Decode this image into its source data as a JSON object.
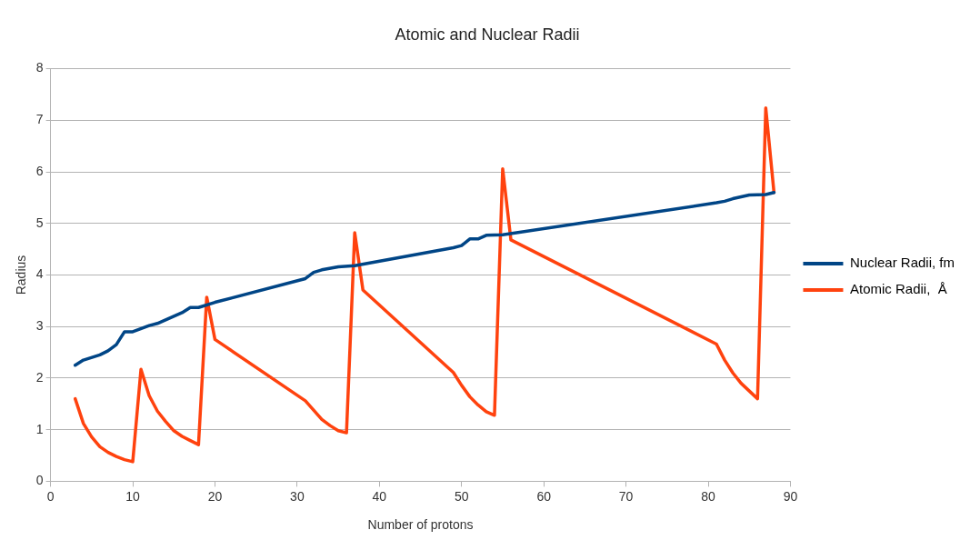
{
  "chart_data": {
    "type": "line",
    "title": "Atomic and Nuclear Radii",
    "xlabel": "Number of protons",
    "ylabel": "Radius",
    "xlim": [
      0,
      90
    ],
    "xticks": [
      0,
      10,
      20,
      30,
      40,
      50,
      60,
      70,
      80,
      90
    ],
    "ylim": [
      0,
      8
    ],
    "yticks": [
      0,
      1,
      2,
      3,
      4,
      5,
      6,
      7,
      8
    ],
    "grid": "y",
    "legend": "right",
    "marker": "none",
    "line_style": "solid",
    "series": [
      {
        "name": "Nuclear Radii, fm",
        "color": "#004586",
        "x": [
          3,
          4,
          6,
          7,
          8,
          9,
          10,
          12,
          13,
          16,
          17,
          18,
          20,
          31,
          32,
          33,
          35,
          37,
          49,
          50,
          51,
          52,
          53,
          55,
          81,
          82,
          83,
          85,
          87,
          88
        ],
        "values": [
          2.25,
          2.35,
          2.45,
          2.53,
          2.65,
          2.9,
          2.9,
          3.02,
          3.06,
          3.27,
          3.37,
          3.37,
          3.47,
          3.93,
          4.05,
          4.1,
          4.16,
          4.18,
          4.53,
          4.57,
          4.7,
          4.7,
          4.77,
          4.78,
          5.4,
          5.43,
          5.48,
          5.55,
          5.56,
          5.6
        ]
      },
      {
        "name": "Atomic Radii,  Å",
        "color": "#ff420e",
        "x": [
          3,
          4,
          5,
          6,
          7,
          8,
          9,
          10,
          11,
          12,
          13,
          14,
          15,
          16,
          17,
          18,
          19,
          20,
          31,
          32,
          33,
          34,
          35,
          36,
          37,
          38,
          49,
          50,
          51,
          52,
          53,
          54,
          55,
          56,
          81,
          82,
          83,
          84,
          85,
          86,
          87,
          88
        ],
        "values": [
          1.6,
          1.12,
          0.86,
          0.67,
          0.56,
          0.48,
          0.42,
          0.38,
          2.17,
          1.66,
          1.36,
          1.16,
          0.98,
          0.87,
          0.79,
          0.71,
          3.57,
          2.75,
          1.56,
          1.38,
          1.2,
          1.08,
          0.98,
          0.94,
          4.82,
          3.71,
          2.11,
          1.86,
          1.64,
          1.48,
          1.35,
          1.28,
          6.06,
          4.68,
          2.66,
          2.35,
          2.1,
          1.9,
          1.75,
          1.6,
          7.24,
          5.6
        ]
      }
    ]
  }
}
